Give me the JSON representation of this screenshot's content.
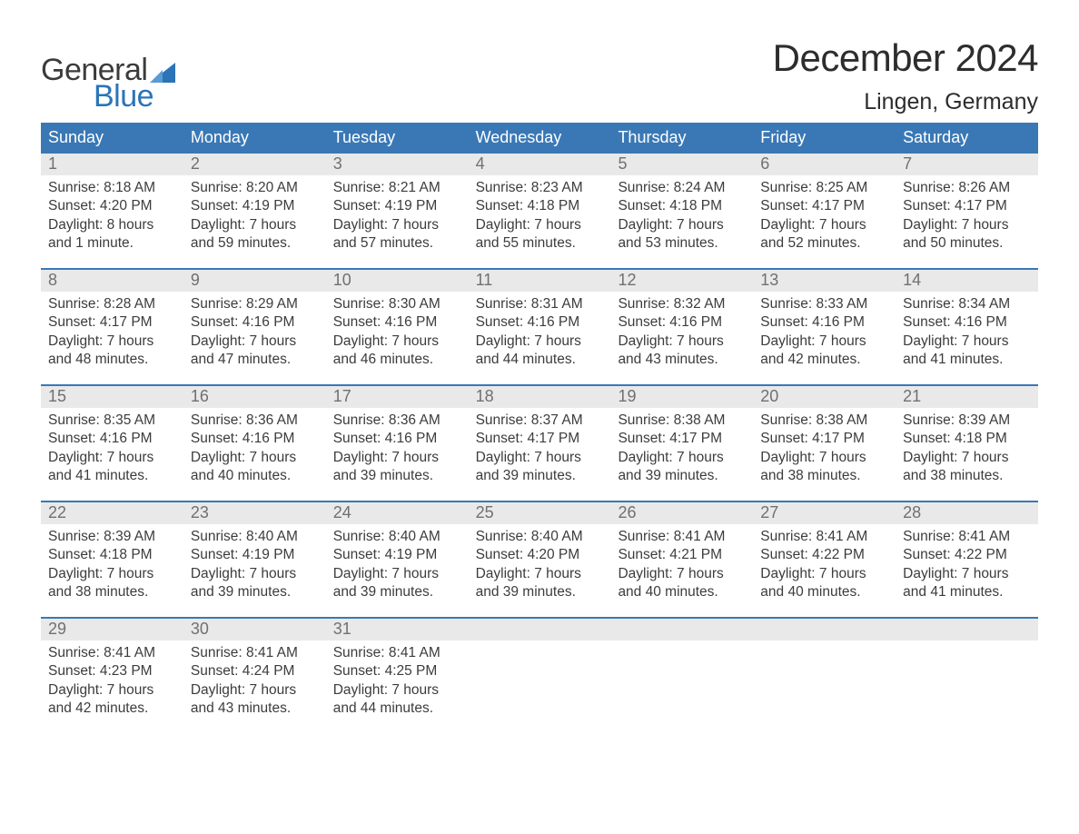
{
  "logo": {
    "word1": "General",
    "word2": "Blue",
    "flag_color": "#2b74b8",
    "text1_color": "#3b3b3b",
    "text2_color": "#2b74b8"
  },
  "title": "December 2024",
  "location": "Lingen, Germany",
  "colors": {
    "header_bg": "#3a78b5",
    "header_text": "#ffffff",
    "daynum_bg": "#e9e9e9",
    "daynum_text": "#707070",
    "body_text": "#3c3c3c",
    "week_border": "#3a78b5",
    "page_bg": "#ffffff"
  },
  "daysOfWeek": [
    "Sunday",
    "Monday",
    "Tuesday",
    "Wednesday",
    "Thursday",
    "Friday",
    "Saturday"
  ],
  "weeks": [
    [
      {
        "n": "1",
        "sunrise": "8:18 AM",
        "sunset": "4:20 PM",
        "dayl1": "Daylight: 8 hours",
        "dayl2": "and 1 minute."
      },
      {
        "n": "2",
        "sunrise": "8:20 AM",
        "sunset": "4:19 PM",
        "dayl1": "Daylight: 7 hours",
        "dayl2": "and 59 minutes."
      },
      {
        "n": "3",
        "sunrise": "8:21 AM",
        "sunset": "4:19 PM",
        "dayl1": "Daylight: 7 hours",
        "dayl2": "and 57 minutes."
      },
      {
        "n": "4",
        "sunrise": "8:23 AM",
        "sunset": "4:18 PM",
        "dayl1": "Daylight: 7 hours",
        "dayl2": "and 55 minutes."
      },
      {
        "n": "5",
        "sunrise": "8:24 AM",
        "sunset": "4:18 PM",
        "dayl1": "Daylight: 7 hours",
        "dayl2": "and 53 minutes."
      },
      {
        "n": "6",
        "sunrise": "8:25 AM",
        "sunset": "4:17 PM",
        "dayl1": "Daylight: 7 hours",
        "dayl2": "and 52 minutes."
      },
      {
        "n": "7",
        "sunrise": "8:26 AM",
        "sunset": "4:17 PM",
        "dayl1": "Daylight: 7 hours",
        "dayl2": "and 50 minutes."
      }
    ],
    [
      {
        "n": "8",
        "sunrise": "8:28 AM",
        "sunset": "4:17 PM",
        "dayl1": "Daylight: 7 hours",
        "dayl2": "and 48 minutes."
      },
      {
        "n": "9",
        "sunrise": "8:29 AM",
        "sunset": "4:16 PM",
        "dayl1": "Daylight: 7 hours",
        "dayl2": "and 47 minutes."
      },
      {
        "n": "10",
        "sunrise": "8:30 AM",
        "sunset": "4:16 PM",
        "dayl1": "Daylight: 7 hours",
        "dayl2": "and 46 minutes."
      },
      {
        "n": "11",
        "sunrise": "8:31 AM",
        "sunset": "4:16 PM",
        "dayl1": "Daylight: 7 hours",
        "dayl2": "and 44 minutes."
      },
      {
        "n": "12",
        "sunrise": "8:32 AM",
        "sunset": "4:16 PM",
        "dayl1": "Daylight: 7 hours",
        "dayl2": "and 43 minutes."
      },
      {
        "n": "13",
        "sunrise": "8:33 AM",
        "sunset": "4:16 PM",
        "dayl1": "Daylight: 7 hours",
        "dayl2": "and 42 minutes."
      },
      {
        "n": "14",
        "sunrise": "8:34 AM",
        "sunset": "4:16 PM",
        "dayl1": "Daylight: 7 hours",
        "dayl2": "and 41 minutes."
      }
    ],
    [
      {
        "n": "15",
        "sunrise": "8:35 AM",
        "sunset": "4:16 PM",
        "dayl1": "Daylight: 7 hours",
        "dayl2": "and 41 minutes."
      },
      {
        "n": "16",
        "sunrise": "8:36 AM",
        "sunset": "4:16 PM",
        "dayl1": "Daylight: 7 hours",
        "dayl2": "and 40 minutes."
      },
      {
        "n": "17",
        "sunrise": "8:36 AM",
        "sunset": "4:16 PM",
        "dayl1": "Daylight: 7 hours",
        "dayl2": "and 39 minutes."
      },
      {
        "n": "18",
        "sunrise": "8:37 AM",
        "sunset": "4:17 PM",
        "dayl1": "Daylight: 7 hours",
        "dayl2": "and 39 minutes."
      },
      {
        "n": "19",
        "sunrise": "8:38 AM",
        "sunset": "4:17 PM",
        "dayl1": "Daylight: 7 hours",
        "dayl2": "and 39 minutes."
      },
      {
        "n": "20",
        "sunrise": "8:38 AM",
        "sunset": "4:17 PM",
        "dayl1": "Daylight: 7 hours",
        "dayl2": "and 38 minutes."
      },
      {
        "n": "21",
        "sunrise": "8:39 AM",
        "sunset": "4:18 PM",
        "dayl1": "Daylight: 7 hours",
        "dayl2": "and 38 minutes."
      }
    ],
    [
      {
        "n": "22",
        "sunrise": "8:39 AM",
        "sunset": "4:18 PM",
        "dayl1": "Daylight: 7 hours",
        "dayl2": "and 38 minutes."
      },
      {
        "n": "23",
        "sunrise": "8:40 AM",
        "sunset": "4:19 PM",
        "dayl1": "Daylight: 7 hours",
        "dayl2": "and 39 minutes."
      },
      {
        "n": "24",
        "sunrise": "8:40 AM",
        "sunset": "4:19 PM",
        "dayl1": "Daylight: 7 hours",
        "dayl2": "and 39 minutes."
      },
      {
        "n": "25",
        "sunrise": "8:40 AM",
        "sunset": "4:20 PM",
        "dayl1": "Daylight: 7 hours",
        "dayl2": "and 39 minutes."
      },
      {
        "n": "26",
        "sunrise": "8:41 AM",
        "sunset": "4:21 PM",
        "dayl1": "Daylight: 7 hours",
        "dayl2": "and 40 minutes."
      },
      {
        "n": "27",
        "sunrise": "8:41 AM",
        "sunset": "4:22 PM",
        "dayl1": "Daylight: 7 hours",
        "dayl2": "and 40 minutes."
      },
      {
        "n": "28",
        "sunrise": "8:41 AM",
        "sunset": "4:22 PM",
        "dayl1": "Daylight: 7 hours",
        "dayl2": "and 41 minutes."
      }
    ],
    [
      {
        "n": "29",
        "sunrise": "8:41 AM",
        "sunset": "4:23 PM",
        "dayl1": "Daylight: 7 hours",
        "dayl2": "and 42 minutes."
      },
      {
        "n": "30",
        "sunrise": "8:41 AM",
        "sunset": "4:24 PM",
        "dayl1": "Daylight: 7 hours",
        "dayl2": "and 43 minutes."
      },
      {
        "n": "31",
        "sunrise": "8:41 AM",
        "sunset": "4:25 PM",
        "dayl1": "Daylight: 7 hours",
        "dayl2": "and 44 minutes."
      },
      null,
      null,
      null,
      null
    ]
  ],
  "labels": {
    "sunrise_prefix": "Sunrise: ",
    "sunset_prefix": "Sunset: "
  }
}
